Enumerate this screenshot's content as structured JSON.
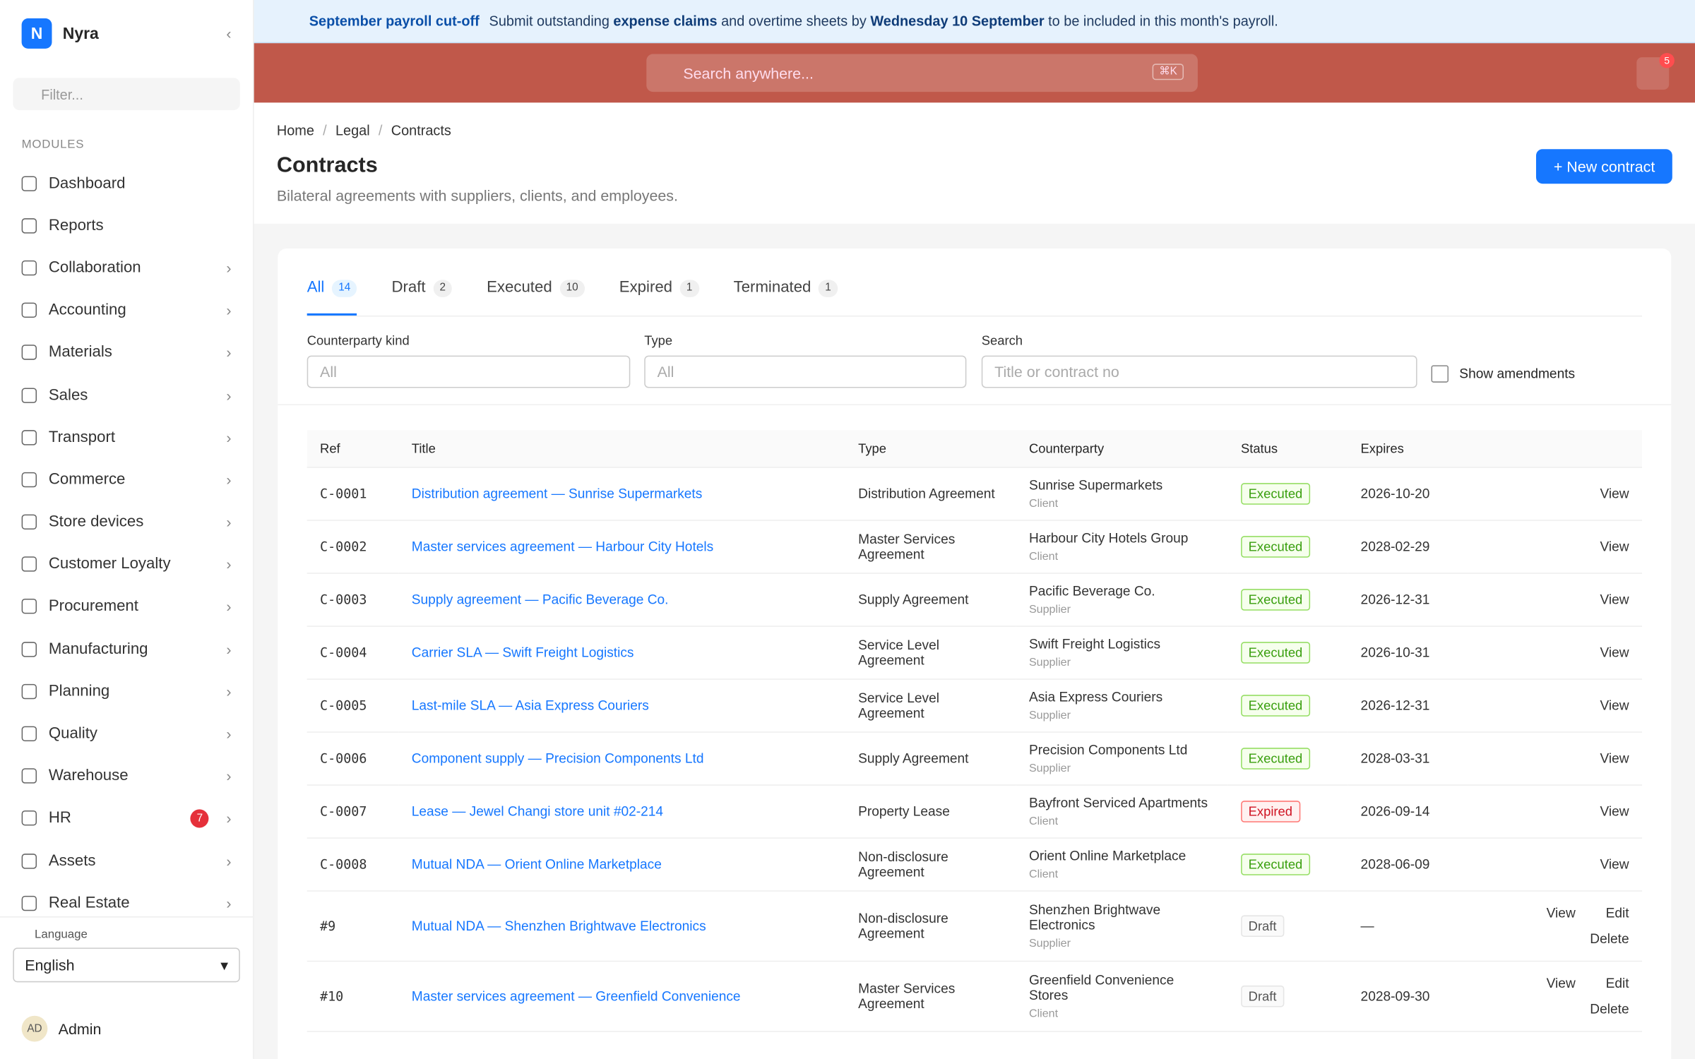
{
  "banner": {
    "title": "September payroll cut-off",
    "parts": [
      "Submit outstanding ",
      "expense claims",
      " and overtime sheets by ",
      "Wednesday 10 September",
      " to be included in this month's payroll."
    ]
  },
  "brand": {
    "logo": "N",
    "name": "Nyra"
  },
  "sidebar": {
    "filter": "Filter...",
    "section": "MODULES",
    "items": [
      {
        "label": "Dashboard"
      },
      {
        "label": "Reports"
      },
      {
        "label": "Collaboration",
        "arrow": true
      },
      {
        "label": "Accounting",
        "arrow": true
      },
      {
        "label": "Materials",
        "arrow": true
      },
      {
        "label": "Sales",
        "arrow": true
      },
      {
        "label": "Transport",
        "arrow": true
      },
      {
        "label": "Commerce",
        "arrow": true
      },
      {
        "label": "Store devices",
        "arrow": true
      },
      {
        "label": "Customer Loyalty",
        "arrow": true
      },
      {
        "label": "Procurement",
        "arrow": true
      },
      {
        "label": "Manufacturing",
        "arrow": true
      },
      {
        "label": "Planning",
        "arrow": true
      },
      {
        "label": "Quality",
        "arrow": true
      },
      {
        "label": "Warehouse",
        "arrow": true
      },
      {
        "label": "HR",
        "arrow": true,
        "badge": 7
      },
      {
        "label": "Assets",
        "arrow": true
      },
      {
        "label": "Real Estate",
        "arrow": true
      }
    ],
    "language_label": "Language",
    "language": "English",
    "user_initials": "AD",
    "user_name": "Admin"
  },
  "header": {
    "search": "Search anywhere...",
    "shortcut": "⌘K",
    "notifications": 5
  },
  "breadcrumb": [
    "Home",
    "Legal",
    "Contracts"
  ],
  "page": {
    "title": "Contracts",
    "subtitle": "Bilateral agreements with suppliers, clients, and employees.",
    "button": "+ New contract"
  },
  "tabs": [
    {
      "name": "All",
      "count": 14
    },
    {
      "name": "Draft",
      "count": 2
    },
    {
      "name": "Executed",
      "count": 10
    },
    {
      "name": "Expired",
      "count": 1
    },
    {
      "name": "Terminated",
      "count": 1
    }
  ],
  "filters": {
    "kind_label": "Counterparty kind",
    "kind": "All",
    "type_label": "Type",
    "type": "All",
    "search_label": "Search",
    "search": "Title or contract no",
    "checkbox": "Show amendments"
  },
  "table": {
    "columns": [
      "Ref",
      "Title",
      "Type",
      "Counterparty",
      "Status",
      "Expires"
    ],
    "rows": [
      {
        "ref": "C-0001",
        "title": "Distribution agreement — Sunrise Supermarkets",
        "type": "Distribution Agreement",
        "party": "Sunrise Supermarkets",
        "kind": "Client",
        "status": "Executed",
        "expires": "2026-10-20",
        "actions": [
          "View"
        ]
      },
      {
        "ref": "C-0002",
        "title": "Master services agreement — Harbour City Hotels",
        "type": "Master Services Agreement",
        "party": "Harbour City Hotels Group",
        "kind": "Client",
        "status": "Executed",
        "expires": "2028-02-29",
        "actions": [
          "View"
        ]
      },
      {
        "ref": "C-0003",
        "title": "Supply agreement — Pacific Beverage Co.",
        "type": "Supply Agreement",
        "party": "Pacific Beverage Co.",
        "kind": "Supplier",
        "status": "Executed",
        "expires": "2026-12-31",
        "actions": [
          "View"
        ]
      },
      {
        "ref": "C-0004",
        "title": "Carrier SLA — Swift Freight Logistics",
        "type": "Service Level Agreement",
        "party": "Swift Freight Logistics",
        "kind": "Supplier",
        "status": "Executed",
        "expires": "2026-10-31",
        "actions": [
          "View"
        ]
      },
      {
        "ref": "C-0005",
        "title": "Last-mile SLA — Asia Express Couriers",
        "type": "Service Level Agreement",
        "party": "Asia Express Couriers",
        "kind": "Supplier",
        "status": "Executed",
        "expires": "2026-12-31",
        "actions": [
          "View"
        ]
      },
      {
        "ref": "C-0006",
        "title": "Component supply — Precision Components Ltd",
        "type": "Supply Agreement",
        "party": "Precision Components Ltd",
        "kind": "Supplier",
        "status": "Executed",
        "expires": "2028-03-31",
        "actions": [
          "View"
        ]
      },
      {
        "ref": "C-0007",
        "title": "Lease — Jewel Changi store unit #02-214",
        "type": "Property Lease",
        "party": "Bayfront Serviced Apartments",
        "kind": "Client",
        "status": "Expired",
        "expires": "2026-09-14",
        "actions": [
          "View"
        ]
      },
      {
        "ref": "C-0008",
        "title": "Mutual NDA — Orient Online Marketplace",
        "type": "Non-disclosure Agreement",
        "party": "Orient Online Marketplace",
        "kind": "Client",
        "status": "Executed",
        "expires": "2028-06-09",
        "actions": [
          "View"
        ]
      },
      {
        "ref": "#9",
        "title": "Mutual NDA — Shenzhen Brightwave Electronics",
        "type": "Non-disclosure Agreement",
        "party": "Shenzhen Brightwave Electronics",
        "kind": "Supplier",
        "status": "Draft",
        "expires": "—",
        "actions": [
          "View",
          "Edit",
          "Delete"
        ]
      },
      {
        "ref": "#10",
        "title": "Master services agreement — Greenfield Convenience",
        "type": "Master Services Agreement",
        "party": "Greenfield Convenience Stores",
        "kind": "Client",
        "status": "Draft",
        "expires": "2028-09-30",
        "actions": [
          "View",
          "Edit",
          "Delete"
        ]
      }
    ]
  }
}
